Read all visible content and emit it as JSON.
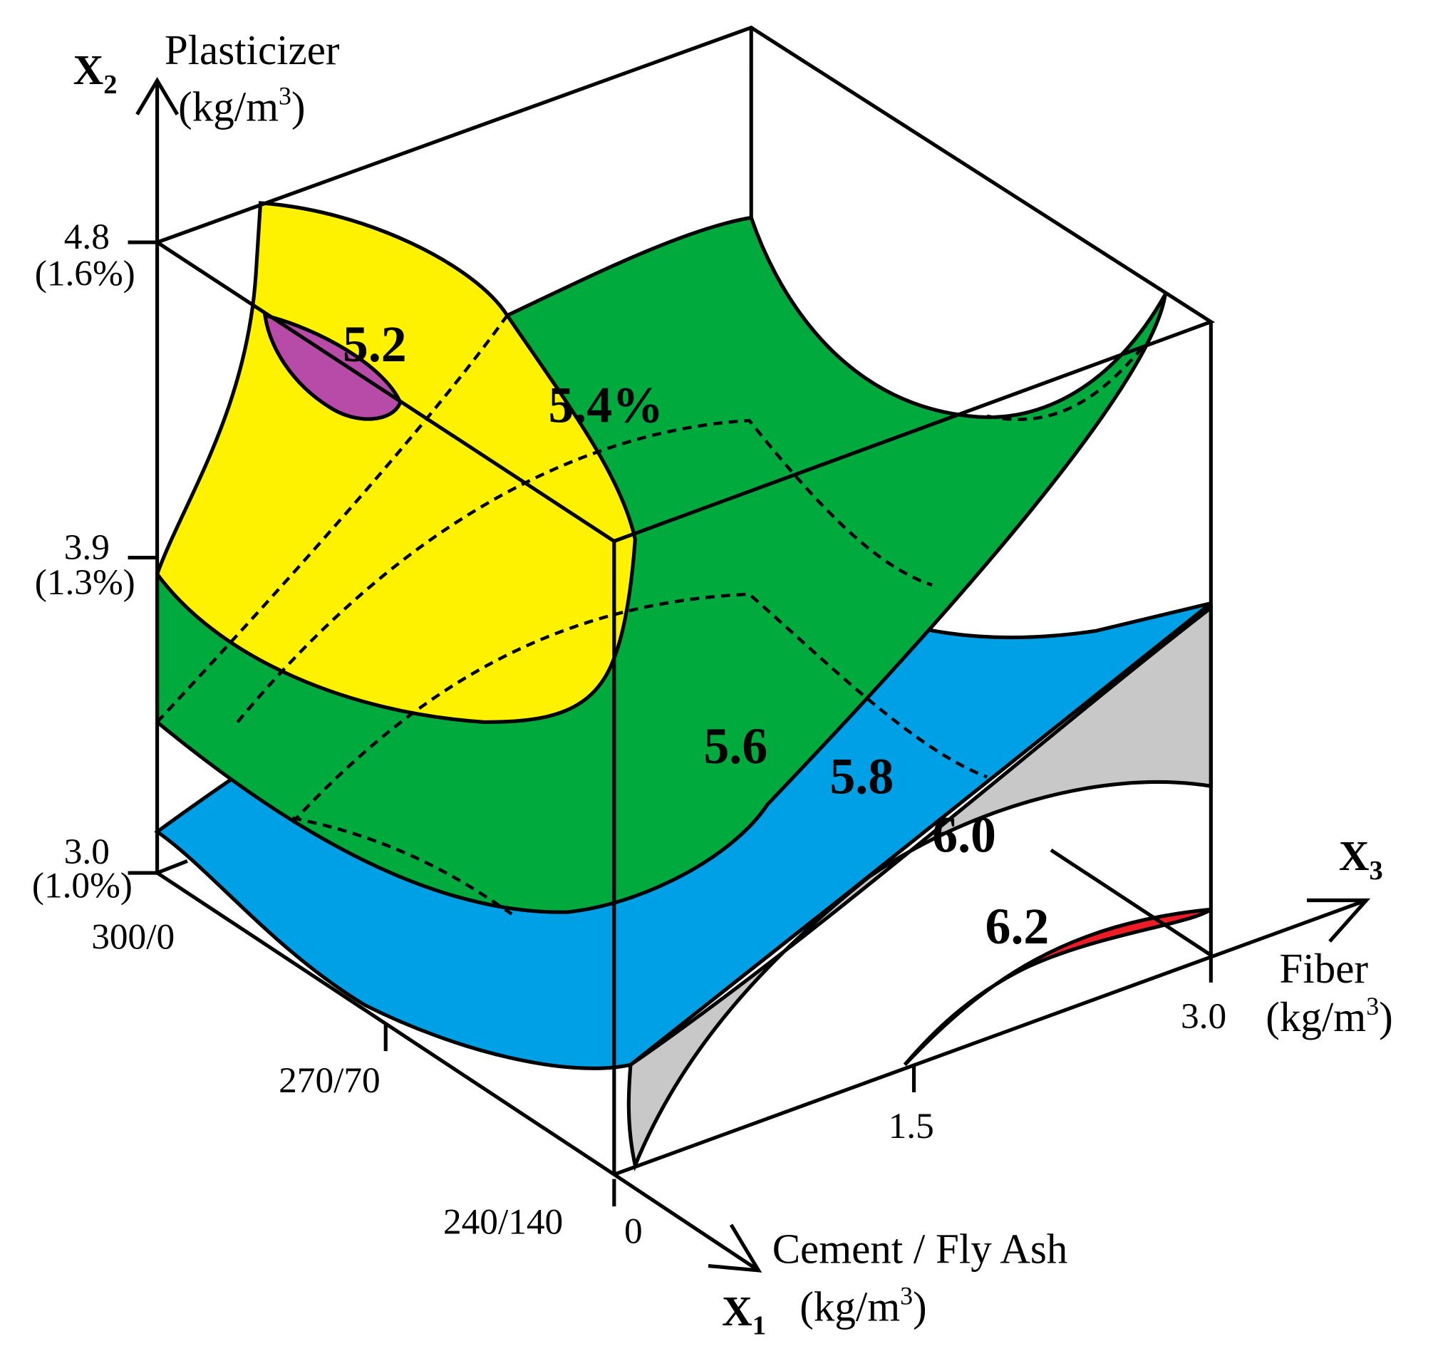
{
  "axes": {
    "x2": {
      "symbol": "X",
      "subscript": "2",
      "name": "Plasticizer",
      "unit": "(kg/m",
      "unit_sup": "3",
      "unit_end": ")",
      "ticks": [
        {
          "value": "4.8",
          "percent": "(1.6%)"
        },
        {
          "value": "3.9",
          "percent": "(1.3%)"
        },
        {
          "value": "3.0",
          "percent": "(1.0%)"
        }
      ]
    },
    "x1": {
      "symbol": "X",
      "subscript": "1",
      "name": "Cement / Fly Ash",
      "unit": "(kg/m",
      "unit_sup": "3",
      "unit_end": ")",
      "ticks": [
        "300/0",
        "270/70",
        "240/140"
      ]
    },
    "x3": {
      "symbol": "X",
      "subscript": "3",
      "name": "Fiber",
      "unit": "(kg/m",
      "unit_sup": "3",
      "unit_end": ")",
      "ticks": [
        "0",
        "1.5",
        "3.0"
      ]
    }
  },
  "contours": [
    "5.2",
    "5.4%",
    "5.6",
    "5.8",
    "6.0",
    "6.2"
  ]
}
